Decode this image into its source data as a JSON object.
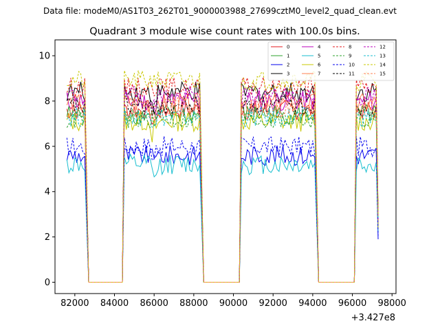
{
  "chart_data": {
    "type": "line",
    "suptitle": "Data file: modeM0/AS1T03_262T01_9000003988_27699cztM0_level2_quad_clean.evt",
    "title": "Quadrant 3 module wise count rates with 100.0s bins.",
    "xlabel": "",
    "ylabel": "",
    "x_offset_label": "+3.427e8",
    "xlim": [
      81000,
      98200
    ],
    "ylim": [
      -0.5,
      10.7
    ],
    "x_ticks": [
      82000,
      84000,
      86000,
      88000,
      90000,
      92000,
      94000,
      96000,
      98000
    ],
    "x_tick_labels": [
      "82000",
      "84000",
      "86000",
      "88000",
      "90000",
      "92000",
      "94000",
      "96000",
      "98000"
    ],
    "y_ticks": [
      0,
      2,
      4,
      6,
      8,
      10
    ],
    "y_tick_labels": [
      "0",
      "2",
      "4",
      "6",
      "8",
      "10"
    ],
    "bin_seconds": 100,
    "segments": [
      {
        "start": 81600,
        "end": 82500
      },
      {
        "start": 84500,
        "end": 88300
      },
      {
        "start": 90400,
        "end": 94100
      },
      {
        "start": 96200,
        "end": 97300
      }
    ],
    "gaps": [
      {
        "from": 82500,
        "bottom_start": 82700,
        "bottom_end": 84400,
        "to": 84500
      },
      {
        "from": 88300,
        "bottom_start": 88500,
        "bottom_end": 90300,
        "to": 90400
      },
      {
        "from": 94100,
        "bottom_start": 94300,
        "bottom_end": 96100,
        "to": 96200
      }
    ],
    "legend_position": "top-right",
    "series": [
      {
        "name": "0",
        "color": "#e41a1c",
        "dash": "solid",
        "level": 7.6
      },
      {
        "name": "1",
        "color": "#2ca02c",
        "dash": "solid",
        "level": 7.4
      },
      {
        "name": "2",
        "color": "#0000ee",
        "dash": "solid",
        "level": 5.6
      },
      {
        "name": "3",
        "color": "#000000",
        "dash": "solid",
        "level": 8.4
      },
      {
        "name": "4",
        "color": "#bb00bb",
        "dash": "solid",
        "level": 8.0
      },
      {
        "name": "5",
        "color": "#17becf",
        "dash": "solid",
        "level": 5.2
      },
      {
        "name": "6",
        "color": "#c8c800",
        "dash": "solid",
        "level": 7.1
      },
      {
        "name": "7",
        "color": "#ff7f50",
        "dash": "solid",
        "level": 7.9
      },
      {
        "name": "8",
        "color": "#e41a1c",
        "dash": "dashed",
        "level": 8.6
      },
      {
        "name": "9",
        "color": "#2ca02c",
        "dash": "dashed",
        "level": 7.2
      },
      {
        "name": "10",
        "color": "#0000ee",
        "dash": "dashed",
        "level": 6.0
      },
      {
        "name": "11",
        "color": "#000000",
        "dash": "dashed",
        "level": 7.8
      },
      {
        "name": "12",
        "color": "#bb00bb",
        "dash": "dashed",
        "level": 8.2
      },
      {
        "name": "13",
        "color": "#17becf",
        "dash": "dashed",
        "level": 7.3
      },
      {
        "name": "14",
        "color": "#c8c800",
        "dash": "dashed",
        "level": 8.9
      },
      {
        "name": "15",
        "color": "#ff7f50",
        "dash": "dashed",
        "level": 7.7
      }
    ]
  }
}
